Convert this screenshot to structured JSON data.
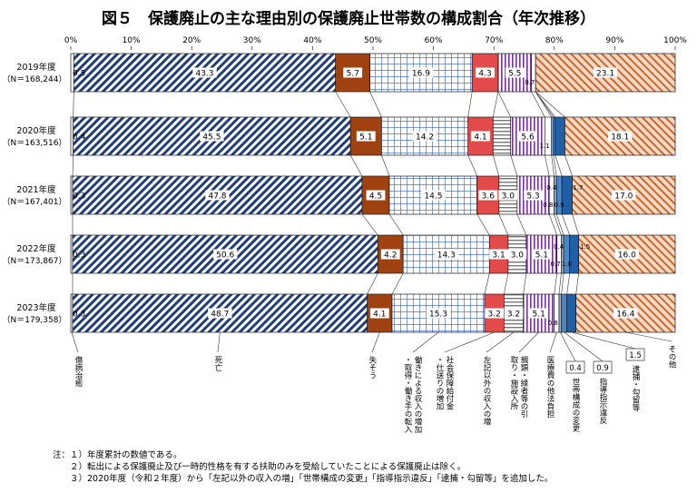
{
  "title": "図５　保護廃止の主な理由別の保護廃止世帯数の構成割合（年次推移）",
  "axis": {
    "ticks": [
      "0%",
      "10%",
      "20%",
      "30%",
      "40%",
      "50%",
      "60%",
      "70%",
      "80%",
      "90%",
      "100%"
    ]
  },
  "notes": [
    "注：１）年度累計の数値である。",
    "　　２）転出による保護廃止及び一時的性格を有する扶助のみを受給していたことによる保護廃止は除く。",
    "　　３）2020年度（令和２年度）から「左記以外の収入の増」「世帯構成の変更」「指導指示違反」「逮捕・勾留等」を追加した。"
  ],
  "categories": [
    {
      "label": "傷病治癒",
      "color": "#ffffff",
      "pattern": "none"
    },
    {
      "label": "死亡",
      "color": "#1f3d7a",
      "pattern": "diag"
    },
    {
      "label": "失そう",
      "color": "#a0420f",
      "pattern": "solid"
    },
    {
      "label": "働きによる収入の増加・取得・働き手の転入",
      "color": "#2e5cb8",
      "pattern": "grid"
    },
    {
      "label": "社会保障給付金・仕送りの増加",
      "color": "#e34a4a",
      "pattern": "solid"
    },
    {
      "label": "左記以外の収入の増",
      "color": "#777777",
      "pattern": "hlines"
    },
    {
      "label": "親類・縁者等の引取り・施設入所",
      "color": "#7a2f9e",
      "pattern": "vlines"
    },
    {
      "label": "医療費の他法負担",
      "color": "#ffffff",
      "pattern": "none"
    },
    {
      "label": "世帯構成の変更",
      "color": "#9ab7d8",
      "pattern": "solid"
    },
    {
      "label": "指導指示違反",
      "color": "#4a86c8",
      "pattern": "solid"
    },
    {
      "label": "逮捕・勾留等",
      "color": "#1f5fa5",
      "pattern": "solid"
    },
    {
      "label": "その他",
      "color": "#c8692f",
      "pattern": "diagR"
    }
  ],
  "chart_data": {
    "type": "bar",
    "orientation": "horizontal-stacked-100",
    "xlim": [
      0,
      100
    ],
    "rows": [
      {
        "year": "2019年度",
        "n": "（N＝168,244）",
        "values": [
          0.5,
          43.3,
          5.7,
          16.9,
          4.3,
          null,
          5.5,
          0.7,
          null,
          null,
          null,
          23.1
        ]
      },
      {
        "year": "2020年度",
        "n": "（N＝163,516）",
        "values": [
          0.4,
          45.5,
          5.1,
          14.2,
          4.1,
          2.9,
          5.6,
          1.1,
          0.3,
          0.3,
          1.6,
          18.1
        ]
      },
      {
        "year": "2021年度",
        "n": "（N＝167,401）",
        "values": [
          0.3,
          47.8,
          4.5,
          14.5,
          3.6,
          3.0,
          5.3,
          0.8,
          0.4,
          0.9,
          1.7,
          17.0
        ]
      },
      {
        "year": "2022年度",
        "n": "（N＝173,867）",
        "values": [
          0.3,
          50.6,
          4.2,
          14.3,
          3.1,
          3.0,
          5.1,
          0.7,
          0.4,
          1.0,
          1.5,
          16.0
        ]
      },
      {
        "year": "2023年度",
        "n": "（N＝179,358）",
        "values": [
          0.3,
          48.7,
          4.1,
          15.3,
          3.2,
          3.2,
          5.1,
          0.8,
          0.4,
          0.9,
          1.5,
          16.4
        ]
      }
    ],
    "labels": {
      "2019年度": {
        "0": "0.5",
        "1": "43.3",
        "2": "5.7",
        "3": "16.9",
        "4": "4.3",
        "6": "5.5",
        "7": "0.7",
        "11": "23.1"
      },
      "2020年度": {
        "0": "0.4",
        "1": "45.5",
        "2": "5.1",
        "3": "14.2",
        "4": "4.1",
        "6": "5.6",
        "7": "1.1",
        "11": "18.1"
      },
      "2021年度": {
        "0": "0.3",
        "1": "47.8",
        "2": "4.5",
        "3": "14.5",
        "4": "3.6",
        "5": "3.0",
        "6": "5.3",
        "7": "0.8",
        "8": "0.4",
        "9": "0.9",
        "10": "1.7",
        "11": "17.0"
      },
      "2022年度": {
        "0": "0.3",
        "1": "50.6",
        "2": "4.2",
        "3": "14.3",
        "4": "3.1",
        "5": "3.0",
        "6": "5.1",
        "7": "0.7",
        "8": "0.4",
        "9": "1.0",
        "10": "1.5",
        "11": "16.0"
      },
      "2023年度": {
        "0": "0.3",
        "1": "48.7",
        "2": "4.1",
        "3": "15.3",
        "4": "3.2",
        "5": "3.2",
        "6": "5.1",
        "7": "0.8",
        "11": "16.4"
      }
    },
    "bottom_boxed_values": {
      "8": "0.4",
      "9": "0.9",
      "10": "1.5"
    }
  }
}
